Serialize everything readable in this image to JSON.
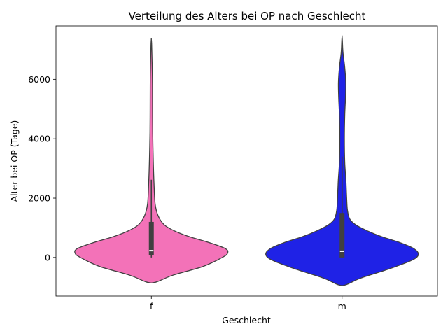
{
  "chart_data": {
    "type": "violin",
    "title": "Verteilung des Alters bei OP nach Geschlecht",
    "xlabel": "Geschlecht",
    "ylabel": "Alter bei OP (Tage)",
    "ylim": [
      -1300,
      7800
    ],
    "yticks": [
      0,
      2000,
      4000,
      6000
    ],
    "grid": false,
    "categories": [
      "f",
      "m"
    ],
    "series": [
      {
        "name": "f",
        "color": "#f372b8",
        "min": 0,
        "q1": 80,
        "median": 230,
        "q3": 1200,
        "whisker_high": 2620,
        "kde_min": -830,
        "kde_max": 7360,
        "density": [
          [
            -830,
            0.06
          ],
          [
            -600,
            0.28
          ],
          [
            -300,
            0.68
          ],
          [
            0,
            0.93
          ],
          [
            150,
            1.0
          ],
          [
            300,
            0.97
          ],
          [
            500,
            0.76
          ],
          [
            700,
            0.5
          ],
          [
            900,
            0.3
          ],
          [
            1100,
            0.17
          ],
          [
            1400,
            0.09
          ],
          [
            1800,
            0.05
          ],
          [
            2500,
            0.035
          ],
          [
            3300,
            0.025
          ],
          [
            4200,
            0.018
          ],
          [
            5000,
            0.016
          ],
          [
            5800,
            0.015
          ],
          [
            6300,
            0.012
          ],
          [
            6800,
            0.008
          ],
          [
            7200,
            0.004
          ],
          [
            7360,
            0.0
          ]
        ]
      },
      {
        "name": "m",
        "color": "#1f22e6",
        "min": 0,
        "q1": 0,
        "median": 210,
        "q3": 1500,
        "whisker_high": 3400,
        "kde_min": -920,
        "kde_max": 7450,
        "density": [
          [
            -920,
            0.05
          ],
          [
            -700,
            0.24
          ],
          [
            -400,
            0.6
          ],
          [
            -100,
            0.91
          ],
          [
            100,
            1.0
          ],
          [
            300,
            0.94
          ],
          [
            500,
            0.76
          ],
          [
            700,
            0.52
          ],
          [
            900,
            0.33
          ],
          [
            1100,
            0.18
          ],
          [
            1300,
            0.1
          ],
          [
            1600,
            0.07
          ],
          [
            2000,
            0.06
          ],
          [
            2600,
            0.05
          ],
          [
            3200,
            0.035
          ],
          [
            4000,
            0.03
          ],
          [
            4800,
            0.035
          ],
          [
            5400,
            0.045
          ],
          [
            5900,
            0.048
          ],
          [
            6400,
            0.035
          ],
          [
            6900,
            0.012
          ],
          [
            7300,
            0.004
          ],
          [
            7450,
            0.0
          ]
        ]
      }
    ]
  }
}
